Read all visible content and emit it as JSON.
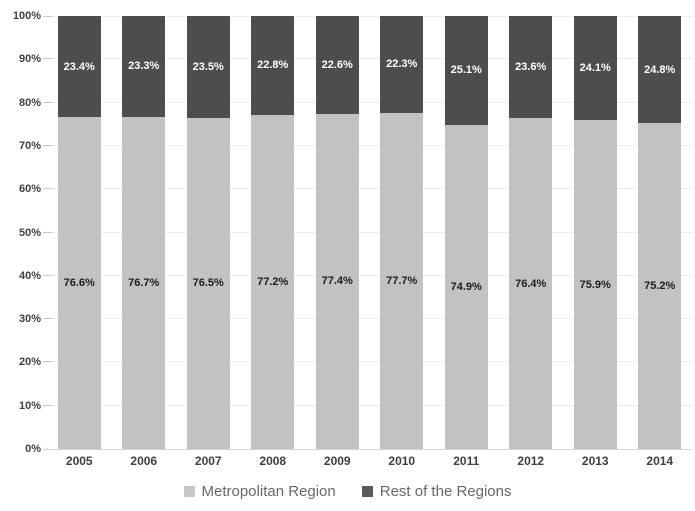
{
  "chart_data": {
    "type": "bar",
    "variant": "stacked-100-percent",
    "title": "",
    "xlabel": "",
    "ylabel": "",
    "grid": true,
    "legend_position": "bottom-center",
    "categories": [
      "2005",
      "2006",
      "2007",
      "2008",
      "2009",
      "2010",
      "2011",
      "2012",
      "2013",
      "2014"
    ],
    "series": [
      {
        "name": "Metropolitan Region",
        "color": "#c2c2c2",
        "label_color": "#1c1c1c",
        "values": [
          76.6,
          76.7,
          76.5,
          77.2,
          77.4,
          77.7,
          74.9,
          76.4,
          75.9,
          75.2
        ],
        "labels": [
          "76.6%",
          "76.7%",
          "76.5%",
          "77.2%",
          "77.4%",
          "77.7%",
          "74.9%",
          "76.4%",
          "75.9%",
          "75.2%"
        ]
      },
      {
        "name": "Rest of the Regions",
        "color": "#4d4d4d",
        "label_color": "#ffffff",
        "values": [
          23.4,
          23.3,
          23.5,
          22.8,
          22.6,
          22.3,
          25.1,
          23.6,
          24.1,
          24.8
        ],
        "labels": [
          "23.4%",
          "23.3%",
          "23.5%",
          "22.8%",
          "22.6%",
          "22.3%",
          "25.1%",
          "23.6%",
          "24.1%",
          "24.8%"
        ]
      }
    ],
    "y_axis": {
      "min": 0,
      "max": 100,
      "tick_step": 10,
      "tick_labels": [
        "0%",
        "10%",
        "20%",
        "30%",
        "40%",
        "50%",
        "60%",
        "70%",
        "80%",
        "90%",
        "100%"
      ]
    },
    "legend": [
      {
        "label": "Metropolitan Region",
        "color": "#c6c6c6"
      },
      {
        "label": "Rest of the Regions",
        "color": "#595959"
      }
    ]
  },
  "style_colors": {
    "gridline": "#ececec",
    "axis_line": "#d4d4d4",
    "tick_mark": "#c6c6c6",
    "axis_text": "#3f3f3f",
    "legend_text": "#686868",
    "background": "#ffffff"
  }
}
